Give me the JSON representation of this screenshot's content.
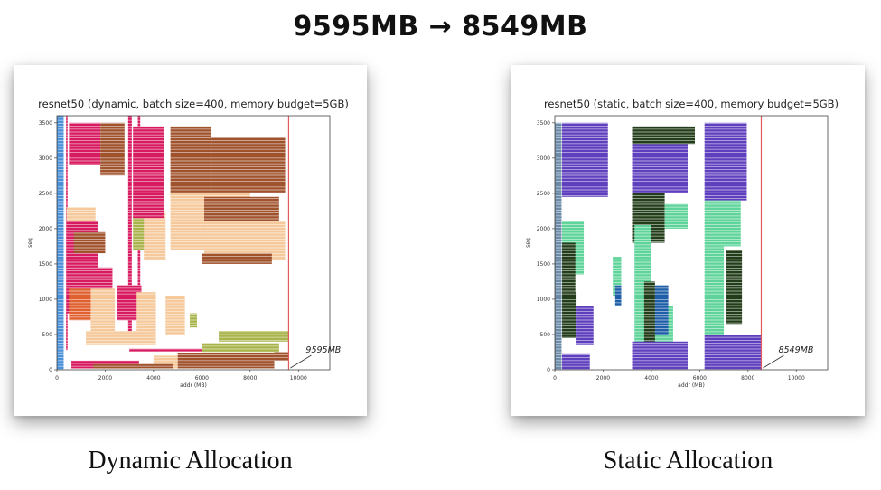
{
  "headline": "9595MB → 8549MB",
  "captions": {
    "left": "Dynamic Allocation",
    "right": "Static Allocation"
  },
  "chart_data": [
    {
      "type": "bar",
      "title": "resnet50 (dynamic, batch size=400, memory budget=5GB)",
      "xlabel": "addr (MB)",
      "ylabel": "seq",
      "xlim": [
        0,
        11300
      ],
      "ylim": [
        0,
        3600
      ],
      "xticks": [
        "0",
        "2000",
        "4000",
        "6000",
        "8000",
        "10000"
      ],
      "yticks": [
        "0",
        "500",
        "1000",
        "1500",
        "2000",
        "2500",
        "3000",
        "3500"
      ],
      "peak_label": "9595MB",
      "peak_addr": 9595,
      "caption": "Dynamic Allocation",
      "colors": [
        "#a0522d",
        "#d81b60",
        "#f5c99b",
        "#a8b34a",
        "#e06030",
        "#4a90d9"
      ],
      "blocks": [
        [
          0,
          3600,
          0,
          280,
          5
        ],
        [
          280,
          3600,
          380,
          440,
          1
        ],
        [
          500,
          3600,
          2950,
          3100,
          1
        ],
        [
          900,
          3600,
          3350,
          3450,
          1
        ],
        [
          2900,
          3500,
          500,
          1800,
          1
        ],
        [
          2750,
          3500,
          1800,
          2800,
          0
        ],
        [
          2450,
          3450,
          4700,
          6400,
          0
        ],
        [
          2500,
          3300,
          6400,
          9450,
          0
        ],
        [
          1700,
          2500,
          4700,
          8000,
          2
        ],
        [
          2000,
          2450,
          6100,
          9200,
          0
        ],
        [
          1550,
          2100,
          6100,
          9450,
          2
        ],
        [
          1500,
          1650,
          6000,
          8900,
          0
        ],
        [
          2050,
          2300,
          400,
          1600,
          2
        ],
        [
          1450,
          2100,
          400,
          1700,
          1
        ],
        [
          1650,
          1950,
          700,
          2000,
          0
        ],
        [
          1700,
          2200,
          3150,
          4100,
          3
        ],
        [
          1550,
          2250,
          3600,
          4500,
          2
        ],
        [
          2150,
          3450,
          3150,
          4450,
          1
        ],
        [
          800,
          1450,
          400,
          2300,
          1
        ],
        [
          700,
          1150,
          500,
          1400,
          4
        ],
        [
          400,
          1150,
          1400,
          2400,
          2
        ],
        [
          700,
          1200,
          2500,
          3500,
          1
        ],
        [
          350,
          1100,
          3300,
          4100,
          2
        ],
        [
          500,
          1050,
          4500,
          5300,
          2
        ],
        [
          600,
          800,
          5500,
          5800,
          3
        ],
        [
          350,
          550,
          1200,
          3400,
          2
        ],
        [
          260,
          300,
          3000,
          8700,
          1
        ],
        [
          250,
          380,
          6000,
          9200,
          3
        ],
        [
          400,
          550,
          6700,
          9595,
          3
        ],
        [
          130,
          250,
          9000,
          9595,
          0
        ],
        [
          20,
          240,
          5000,
          9000,
          0
        ],
        [
          20,
          200,
          4000,
          5000,
          2
        ],
        [
          20,
          130,
          600,
          3400,
          1
        ],
        [
          20,
          80,
          1500,
          4800,
          0
        ]
      ]
    },
    {
      "type": "bar",
      "title": "resnet50 (static, batch size=400, memory budget=5GB)",
      "xlabel": "addr (MB)",
      "ylabel": "seq",
      "xlim": [
        0,
        11300
      ],
      "ylim": [
        0,
        3600
      ],
      "xticks": [
        "0",
        "2000",
        "4000",
        "6000",
        "8000",
        "10000"
      ],
      "yticks": [
        "0",
        "500",
        "1000",
        "1500",
        "2000",
        "2500",
        "3000",
        "3500"
      ],
      "peak_label": "8549MB",
      "peak_addr": 8549,
      "caption": "Static Allocation",
      "colors": [
        "#5e3fbe",
        "#233d1a",
        "#5fd49a",
        "#1f5fa8",
        "#6b8aa8"
      ],
      "blocks": [
        [
          0,
          3500,
          0,
          280,
          4
        ],
        [
          2450,
          3500,
          300,
          2200,
          0
        ],
        [
          1350,
          2100,
          300,
          1200,
          2
        ],
        [
          0,
          220,
          300,
          1450,
          0
        ],
        [
          1100,
          1800,
          300,
          850,
          1
        ],
        [
          450,
          1100,
          300,
          900,
          1
        ],
        [
          350,
          900,
          900,
          1600,
          0
        ],
        [
          2500,
          3450,
          3200,
          5500,
          0
        ],
        [
          1800,
          2500,
          3200,
          4550,
          1
        ],
        [
          2000,
          2350,
          4550,
          5500,
          2
        ],
        [
          3200,
          3450,
          3200,
          5800,
          1
        ],
        [
          900,
          2050,
          3300,
          4000,
          2
        ],
        [
          400,
          900,
          3300,
          4900,
          2
        ],
        [
          400,
          1250,
          3700,
          4150,
          1
        ],
        [
          500,
          1200,
          4150,
          4700,
          3
        ],
        [
          0,
          400,
          3200,
          5500,
          0
        ],
        [
          2400,
          3500,
          6200,
          7950,
          0
        ],
        [
          1750,
          2400,
          6200,
          7700,
          2
        ],
        [
          500,
          1750,
          6200,
          7000,
          2
        ],
        [
          650,
          1700,
          7100,
          7750,
          1
        ],
        [
          0,
          500,
          6200,
          8549,
          0
        ],
        [
          1050,
          1600,
          2400,
          2750,
          2
        ],
        [
          900,
          1200,
          2500,
          2750,
          3
        ]
      ]
    }
  ]
}
